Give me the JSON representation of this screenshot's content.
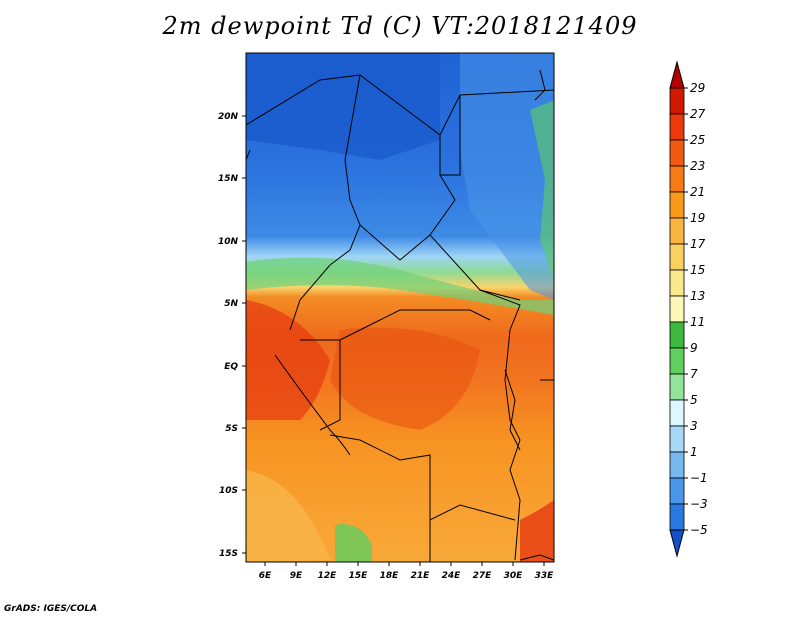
{
  "title": "2m dewpoint Td (C) VT:2018121409",
  "credit": "GrADS: IGES/COLA",
  "lat_labels": [
    "20N",
    "15N",
    "10N",
    "5N",
    "EQ",
    "5S",
    "10S",
    "15S"
  ],
  "lon_labels": [
    "6E",
    "9E",
    "12E",
    "15E",
    "18E",
    "21E",
    "24E",
    "27E",
    "30E",
    "33E"
  ],
  "colorbar": {
    "labels": [
      "29",
      "27",
      "25",
      "23",
      "21",
      "19",
      "17",
      "15",
      "13",
      "11",
      "9",
      "7",
      "5",
      "3",
      "1",
      "−1",
      "−3",
      "−5"
    ],
    "colors": [
      "#b30000",
      "#d21a00",
      "#ea3a0c",
      "#f25a10",
      "#f77a14",
      "#f99a1a",
      "#fab540",
      "#fbd060",
      "#fbe88a",
      "#fbf7b8",
      "#3cb83c",
      "#5fcf5f",
      "#94e39a",
      "#dcf7ff",
      "#a8d8f8",
      "#78b8f0",
      "#4a96e8",
      "#2a78e0",
      "#1450c8"
    ]
  }
}
